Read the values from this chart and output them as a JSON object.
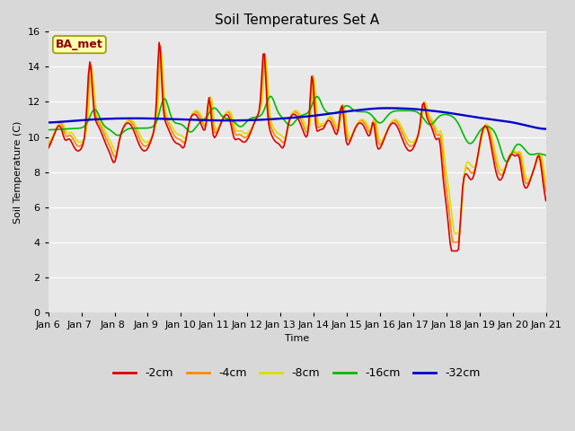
{
  "title": "Soil Temperatures Set A",
  "xlabel": "Time",
  "ylabel": "Soil Temperature (C)",
  "ylim": [
    0,
    16
  ],
  "yticks": [
    0,
    2,
    4,
    6,
    8,
    10,
    12,
    14,
    16
  ],
  "x_labels": [
    "Jan 6",
    "Jan 7 ",
    "Jan 8 ",
    "Jan 9 ",
    "Jan 10",
    "Jan 11",
    "Jan 12",
    "Jan 13",
    "Jan 14",
    "Jan 15",
    "Jan 16",
    "Jan 17",
    "Jan 18",
    "Jan 19",
    "Jan 20",
    "Jan 21"
  ],
  "annotation_text": "BA_met",
  "annotation_color": "#8B0000",
  "annotation_bg": "#FFFFB0",
  "annotation_edge": "#999900",
  "colors": {
    "-2cm": "#DD0000",
    "-4cm": "#FF8800",
    "-8cm": "#DDDD00",
    "-16cm": "#00BB00",
    "-32cm": "#0000CC"
  },
  "legend_labels": [
    "-2cm",
    "-4cm",
    "-8cm",
    "-16cm",
    "-32cm"
  ],
  "fig_bg": "#D8D8D8",
  "plot_bg": "#E8E8E8",
  "grid_color": "#FFFFFF",
  "line_width": 1.2,
  "title_fontsize": 11,
  "label_fontsize": 8,
  "tick_fontsize": 8
}
